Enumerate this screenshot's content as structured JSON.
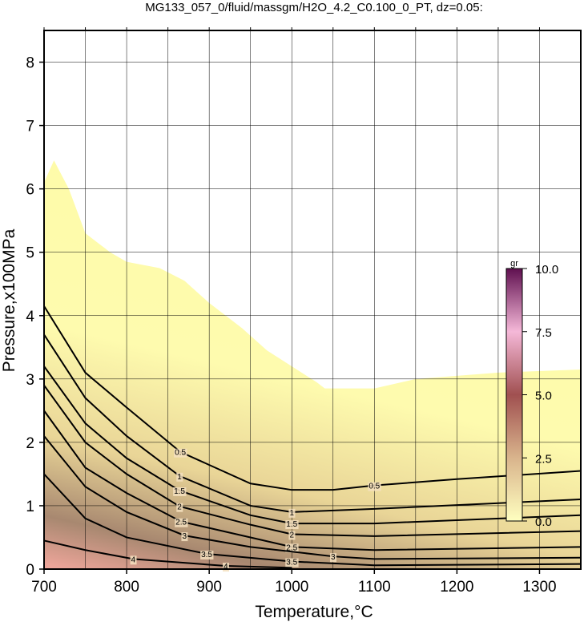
{
  "chart_data": {
    "type": "contour",
    "title": "MG133_057_0/fluid/massgm/H2O_4.2_C0.100_0_PT, dz=0.05:",
    "x_label": "Temperature,°C",
    "y_label": "Pressure,x100MPa",
    "xlim": [
      700,
      1350
    ],
    "ylim": [
      0,
      8.5
    ],
    "xticks": [
      700,
      800,
      900,
      1000,
      1100,
      1200,
      1300
    ],
    "yticks": [
      0,
      1,
      2,
      3,
      4,
      5,
      6,
      7,
      8
    ],
    "x_grid": [
      700,
      750,
      800,
      850,
      900,
      950,
      1000,
      1050,
      1100,
      1150,
      1200,
      1250,
      1300
    ],
    "grid": true,
    "region": {
      "x": [
        700,
        712,
        730,
        750,
        780,
        800,
        840,
        870,
        900,
        940,
        970,
        1000,
        1030,
        1040,
        1100,
        1150,
        1250,
        1350
      ],
      "y": [
        6.1,
        6.45,
        6.0,
        5.3,
        5.0,
        4.85,
        4.75,
        4.55,
        4.2,
        3.8,
        3.45,
        3.2,
        2.95,
        2.85,
        2.85,
        3.0,
        3.1,
        3.15
      ]
    },
    "contours": [
      {
        "level": 0.5,
        "x": [
          700,
          750,
          800,
          865,
          950,
          1000,
          1050,
          1100,
          1200,
          1350
        ],
        "y": [
          4.15,
          3.1,
          2.55,
          1.85,
          1.35,
          1.25,
          1.25,
          1.32,
          1.42,
          1.55
        ]
      },
      {
        "level": 1,
        "x": [
          700,
          750,
          800,
          864,
          950,
          1000,
          1100,
          1350
        ],
        "y": [
          3.7,
          2.7,
          2.1,
          1.47,
          1.0,
          0.9,
          0.95,
          1.1
        ]
      },
      {
        "level": 1.5,
        "x": [
          700,
          750,
          800,
          864,
          950,
          1000,
          1100,
          1350
        ],
        "y": [
          3.2,
          2.3,
          1.75,
          1.24,
          0.85,
          0.72,
          0.72,
          0.85
        ]
      },
      {
        "level": 2,
        "x": [
          700,
          750,
          800,
          864,
          950,
          1000,
          1100,
          1350
        ],
        "y": [
          2.9,
          2.0,
          1.5,
          0.99,
          0.7,
          0.55,
          0.52,
          0.6
        ]
      },
      {
        "level": 2.5,
        "x": [
          700,
          750,
          800,
          866,
          950,
          1000,
          1100,
          1350
        ],
        "y": [
          2.5,
          1.6,
          1.2,
          0.75,
          0.5,
          0.35,
          0.3,
          0.35
        ]
      },
      {
        "level": 3,
        "x": [
          700,
          750,
          800,
          870,
          950,
          1050,
          1100,
          1350
        ],
        "y": [
          2.1,
          1.3,
          0.9,
          0.53,
          0.35,
          0.2,
          0.16,
          0.18
        ]
      },
      {
        "level": 3.5,
        "x": [
          700,
          750,
          800,
          897,
          1000,
          1100,
          1350
        ],
        "y": [
          1.5,
          0.8,
          0.5,
          0.24,
          0.12,
          0.06,
          0.08
        ]
      },
      {
        "level": 4,
        "x": [
          700,
          750,
          808,
          920,
          1000
        ],
        "y": [
          0.45,
          0.3,
          0.16,
          0.05,
          0.02
        ]
      }
    ],
    "colorbar": {
      "title": "gr",
      "lim": [
        0,
        10
      ],
      "ticks": [
        {
          "value": 0,
          "label": "0.0"
        },
        {
          "value": 2.5,
          "label": "2.5"
        },
        {
          "value": 5,
          "label": "5.0"
        },
        {
          "value": 7.5,
          "label": "7.5"
        },
        {
          "value": 10,
          "label": "10.0"
        }
      ]
    }
  }
}
